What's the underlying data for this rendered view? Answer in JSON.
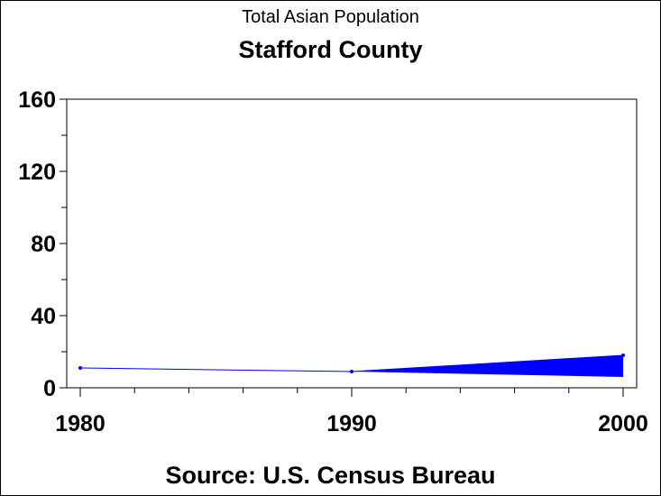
{
  "header": {
    "subtitle": "Total Asian Population",
    "title": "Stafford County"
  },
  "footer": {
    "source": "Source: U.S. Census Bureau"
  },
  "chart_data": {
    "type": "line",
    "title": "Stafford County",
    "subtitle": "Total Asian Population",
    "xlabel": "",
    "ylabel": "",
    "x": [
      1980,
      1990,
      2000
    ],
    "xlim": [
      1980,
      2000
    ],
    "ylim": [
      0,
      160
    ],
    "x_ticks": [
      "1980",
      "1990",
      "2000"
    ],
    "y_ticks": [
      "0",
      "40",
      "80",
      "120",
      "160"
    ],
    "series": [
      {
        "values": [
          11,
          9,
          18
        ]
      }
    ],
    "band": {
      "x": [
        1990,
        2000
      ],
      "lower": [
        9,
        6
      ],
      "upper": [
        9,
        18
      ]
    },
    "grid": false,
    "legend": "none",
    "colors": {
      "line": "#0000ff",
      "band": "#0000ff",
      "axis": "#000000"
    }
  }
}
